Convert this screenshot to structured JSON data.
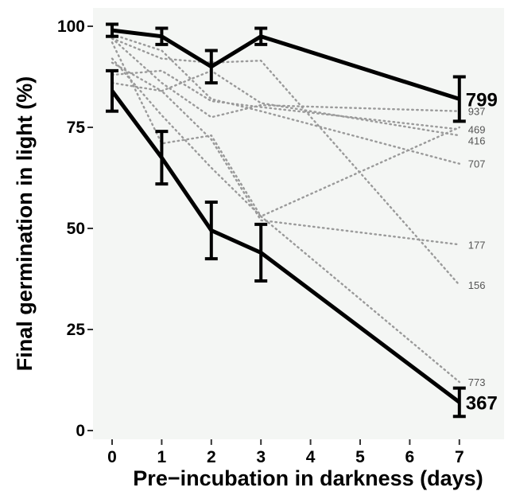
{
  "chart_data": {
    "type": "line",
    "xlabel": "Pre−incubation in darkness (days)",
    "ylabel": "Final germination in light (%)",
    "xlim": [
      -0.3,
      7.3
    ],
    "ylim": [
      0,
      100
    ],
    "x_ticks": [
      0,
      1,
      2,
      3,
      4,
      5,
      6,
      7
    ],
    "y_ticks": [
      0,
      25,
      50,
      75,
      100
    ],
    "x_tick_labels": [
      "0",
      "1",
      "2",
      "3",
      "4",
      "5",
      "6",
      "7"
    ],
    "y_tick_labels": [
      "0",
      "25",
      "50",
      "75",
      "100"
    ],
    "grid": false,
    "background_color": "#f4f6f4",
    "highlight_color": "#000000",
    "background_series_color": "#9a9a9a",
    "highlighted_series": [
      {
        "name": "799",
        "x": [
          0,
          1,
          2,
          3,
          7
        ],
        "y": [
          99,
          97.5,
          90,
          97.5,
          82
        ],
        "error": [
          1.5,
          2,
          4,
          2,
          5.5
        ]
      },
      {
        "name": "367",
        "x": [
          0,
          1,
          2,
          3,
          7
        ],
        "y": [
          84,
          67.5,
          49.5,
          44,
          7
        ],
        "error": [
          5,
          6.5,
          7,
          7,
          3.5
        ]
      }
    ],
    "background_series": [
      {
        "name": "937",
        "x": [
          0,
          1,
          2,
          3,
          7
        ],
        "y": [
          97,
          86,
          77.5,
          80.5,
          79
        ]
      },
      {
        "name": "469",
        "x": [
          0,
          1,
          2,
          3,
          7
        ],
        "y": [
          88,
          89,
          81.5,
          80,
          74.5
        ]
      },
      {
        "name": "416",
        "x": [
          0,
          1,
          2,
          3,
          7
        ],
        "y": [
          91,
          84,
          89,
          81,
          73
        ]
      },
      {
        "name": "707",
        "x": [
          0,
          1,
          2,
          3,
          7
        ],
        "y": [
          98,
          94,
          82,
          79,
          66
        ]
      },
      {
        "name": "177",
        "x": [
          0,
          1,
          2,
          3,
          7
        ],
        "y": [
          86,
          84,
          72,
          52,
          46
        ]
      },
      {
        "name": "156",
        "x": [
          0,
          1,
          2,
          3,
          7
        ],
        "y": [
          97,
          92,
          91,
          91.5,
          36
        ]
      },
      {
        "name": "773",
        "x": [
          0,
          1,
          2,
          3,
          7
        ],
        "y": [
          96,
          71,
          73,
          53,
          12
        ]
      },
      {
        "name": "",
        "x": [
          0,
          1,
          2,
          3,
          7
        ],
        "y": [
          92,
          78,
          65,
          53,
          75
        ]
      }
    ]
  }
}
